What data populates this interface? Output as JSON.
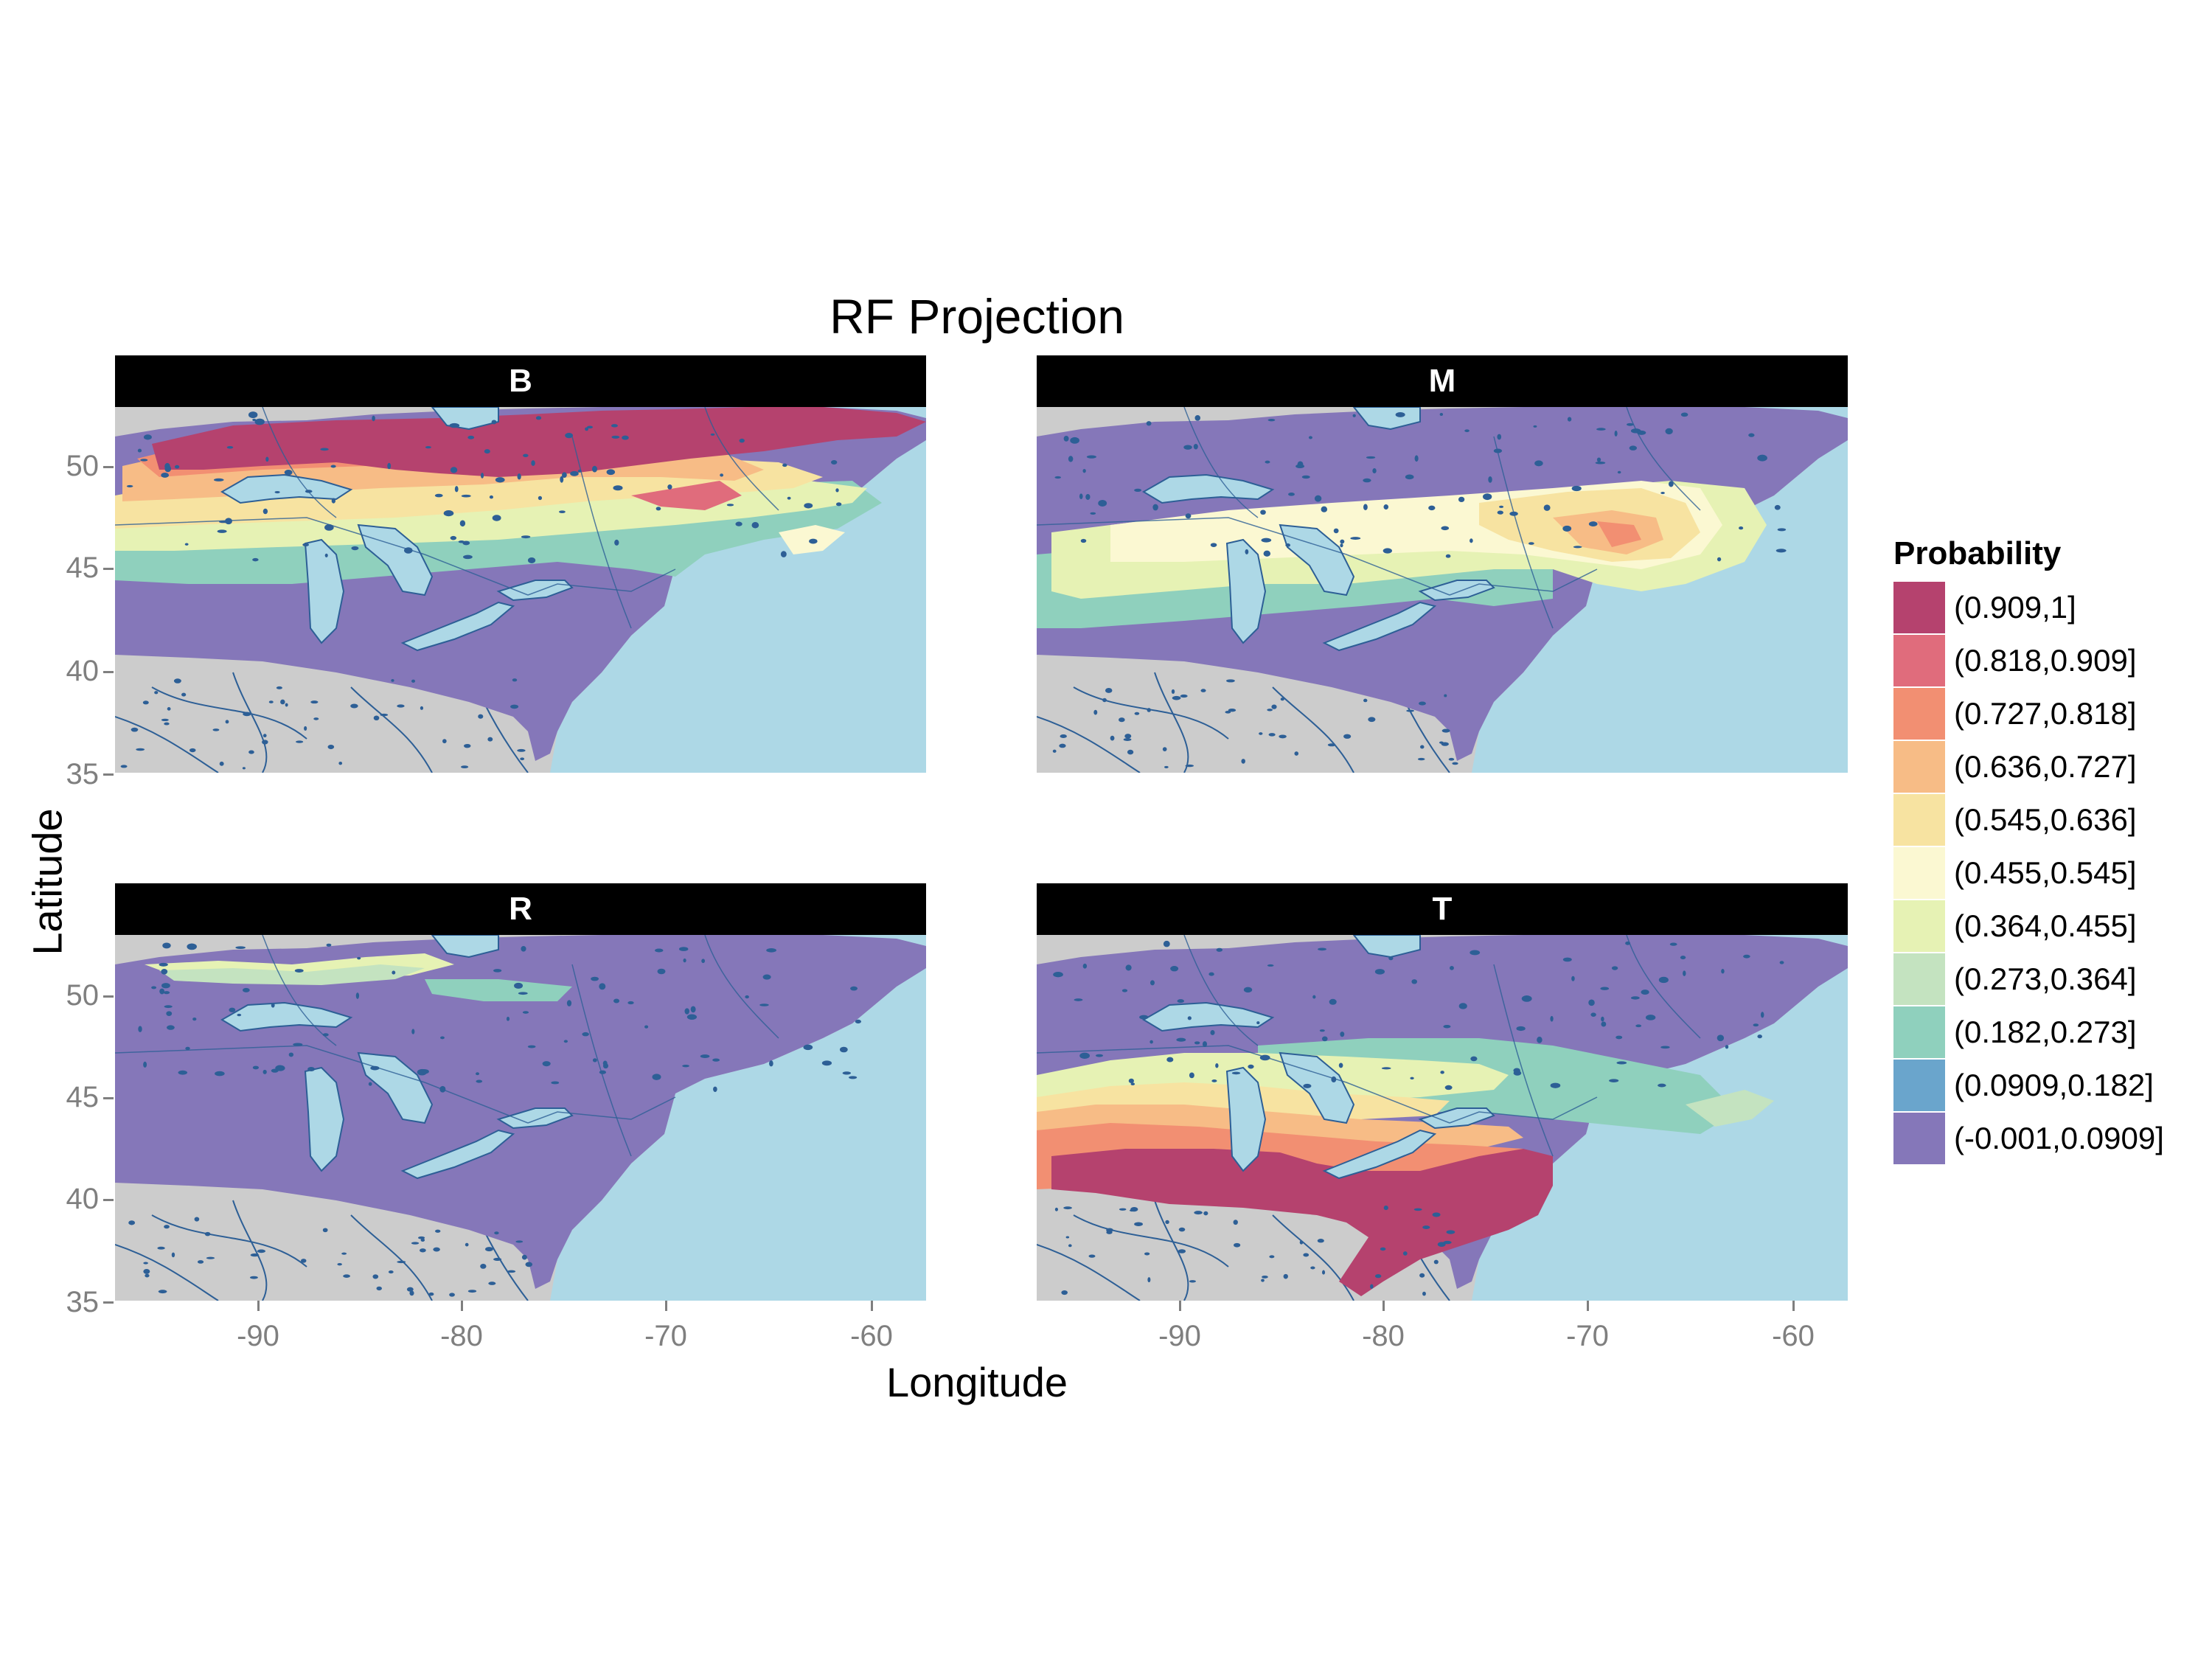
{
  "title": "RF Projection",
  "xlabel": "Longitude",
  "ylabel": "Latitude",
  "panels": [
    {
      "label": "B"
    },
    {
      "label": "M"
    },
    {
      "label": "R"
    },
    {
      "label": "T"
    }
  ],
  "axes": {
    "x_ticks": [
      "-90",
      "-80",
      "-70",
      "-60"
    ],
    "y_ticks": [
      "50",
      "45",
      "40",
      "35"
    ],
    "x_range": [
      -97,
      -57.5
    ],
    "y_range": [
      35,
      52.8
    ]
  },
  "legend": {
    "title": "Probability",
    "items": [
      {
        "label": "(0.909,1]",
        "color": "#b5426e"
      },
      {
        "label": "(0.818,0.909]",
        "color": "#e06c7c"
      },
      {
        "label": "(0.727,0.818]",
        "color": "#f28f72"
      },
      {
        "label": "(0.636,0.727]",
        "color": "#f7bc86"
      },
      {
        "label": "(0.545,0.636]",
        "color": "#f7e3a1"
      },
      {
        "label": "(0.455,0.545]",
        "color": "#fbf8d2"
      },
      {
        "label": "(0.364,0.455]",
        "color": "#e6f2b4"
      },
      {
        "label": "(0.273,0.364]",
        "color": "#c4e3c0"
      },
      {
        "label": "(0.182,0.273]",
        "color": "#8fd0bd"
      },
      {
        "label": "(0.0909,0.182]",
        "color": "#6aa5cc"
      },
      {
        "label": "(-0.001,0.0909]",
        "color": "#8577b9"
      }
    ]
  },
  "colors": {
    "land": "#cccccc",
    "ocean": "#add8e6",
    "water_lines": "#2d5f96",
    "strip": "#000000"
  }
}
